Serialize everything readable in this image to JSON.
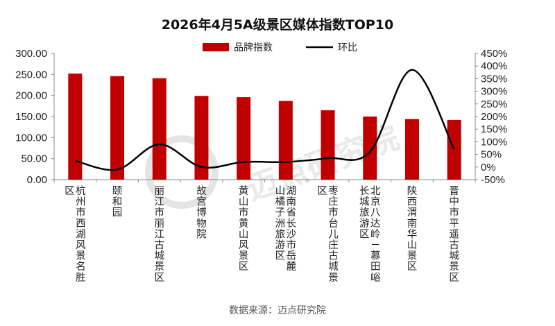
{
  "chart_data": {
    "type": "bar",
    "title": "2026年4月5A级景区媒体指数TOP10",
    "source": "数据来源：迈点研究院",
    "watermark": "迈点研究院",
    "categories": [
      [
        "杭州市西湖风景名胜",
        "区"
      ],
      [
        "颐和园"
      ],
      [
        "丽江市丽江古城景区"
      ],
      [
        "故宫博物院"
      ],
      [
        "黄山市黄山风景区"
      ],
      [
        "湖南省长沙市岳麓",
        "山橘子洲旅游区"
      ],
      [
        "枣庄市台儿庄古城景",
        "区"
      ],
      [
        "北京八达岭－慕田峪",
        "长城旅游区"
      ],
      [
        "陕西渭南华山景区"
      ],
      [
        "晋中市平遥古城景区"
      ]
    ],
    "series": [
      {
        "name": "品牌指数",
        "kind": "bar",
        "axis": "left",
        "color": "#c00000",
        "values": [
          252,
          246,
          241,
          199,
          196,
          187,
          165,
          150,
          144,
          142
        ]
      },
      {
        "name": "环比",
        "kind": "line",
        "axis": "right",
        "color": "#000000",
        "values": [
          25,
          -10,
          90,
          0,
          20,
          20,
          35,
          60,
          385,
          70
        ]
      }
    ],
    "left_axis": {
      "min": 0,
      "max": 300,
      "step": 50,
      "ticks": [
        "0.00",
        "50.00",
        "100.00",
        "150.00",
        "200.00",
        "250.00",
        "300.00"
      ]
    },
    "right_axis": {
      "min": -50,
      "max": 450,
      "step": 50,
      "ticks": [
        "-50%",
        "0%",
        "50%",
        "100%",
        "150%",
        "200%",
        "250%",
        "300%",
        "350%",
        "400%",
        "450%"
      ]
    },
    "legend_position": "top-center",
    "grid": false
  }
}
